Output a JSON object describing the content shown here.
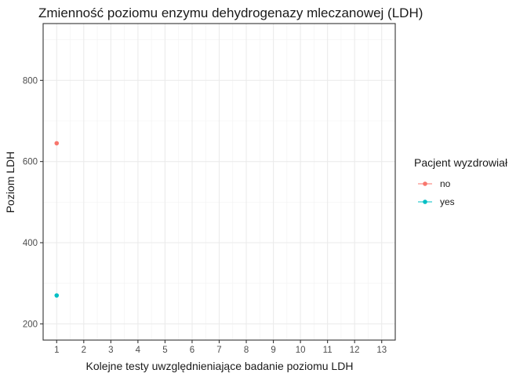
{
  "chart_data": {
    "type": "line",
    "title": "Zmienność poziomu enzymu dehydrogenazy mleczanowej (LDH)",
    "xlabel": "Kolejne testy uwzględnieniające badanie poziomu LDH",
    "ylabel": "Poziom LDH",
    "x_ticks": [
      "1",
      "2",
      "3",
      "4",
      "5",
      "6",
      "7",
      "8",
      "9",
      "10",
      "11",
      "12",
      "13"
    ],
    "y_ticks": [
      "200",
      "400",
      "600",
      "800"
    ],
    "xlim": [
      0.5,
      13.5
    ],
    "ylim": [
      160,
      940
    ],
    "grid": true,
    "legend_title": "Pacjent wyzdrowiał",
    "legend_position": "right",
    "series": [
      {
        "name": "no",
        "color": "#F8766D",
        "x": [
          1
        ],
        "y": [
          645
        ]
      },
      {
        "name": "yes",
        "color": "#00BFC4",
        "x": [
          1
        ],
        "y": [
          270
        ]
      }
    ]
  }
}
